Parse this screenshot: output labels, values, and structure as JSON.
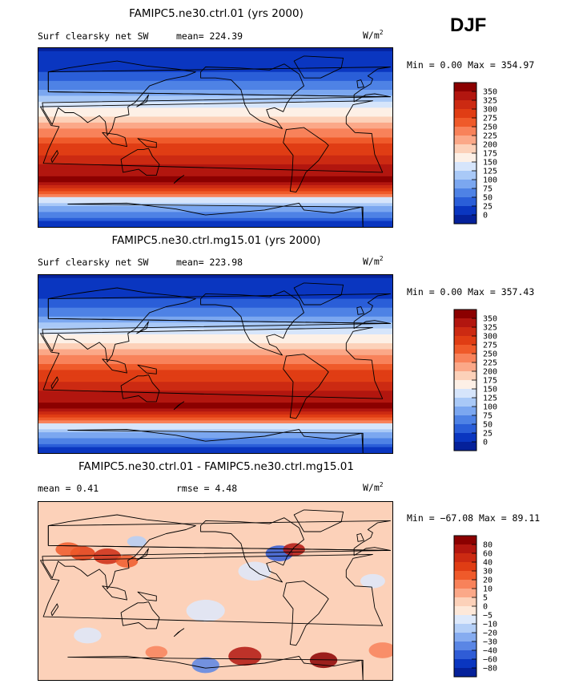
{
  "season": "DJF",
  "panels": [
    {
      "title": "FAMIPC5.ne30.ctrl.01 (yrs 2000)",
      "variable": "Surf clearsky net SW",
      "stat_text": "mean= 224.39",
      "units_base": "W/m",
      "units_exp": "2",
      "minmax": "Min =    0.00 Max = 354.97",
      "kind": "abs",
      "colorbar": {
        "labels": [
          "350",
          "325",
          "300",
          "275",
          "250",
          "225",
          "200",
          "175",
          "150",
          "125",
          "100",
          "75",
          "50",
          "25",
          "0"
        ],
        "colors": [
          "#8b0000",
          "#b2160f",
          "#cc2a12",
          "#e03d14",
          "#ef5a2a",
          "#f8825a",
          "#fba888",
          "#fcd1b9",
          "#fdf0e6",
          "#d6e5fb",
          "#a9c9f7",
          "#7ba7f0",
          "#4e82e5",
          "#2a5ed8",
          "#0a36c0",
          "#05219a"
        ]
      }
    },
    {
      "title": "FAMIPC5.ne30.ctrl.mg15.01 (yrs 2000)",
      "variable": "Surf clearsky net SW",
      "stat_text": "mean= 223.98",
      "units_base": "W/m",
      "units_exp": "2",
      "minmax": "Min =    0.00 Max = 357.43",
      "kind": "abs",
      "colorbar": {
        "labels": [
          "350",
          "325",
          "300",
          "275",
          "250",
          "225",
          "200",
          "175",
          "150",
          "125",
          "100",
          "75",
          "50",
          "25",
          "0"
        ],
        "colors": [
          "#8b0000",
          "#b2160f",
          "#cc2a12",
          "#e03d14",
          "#ef5a2a",
          "#f8825a",
          "#fba888",
          "#fcd1b9",
          "#fdf0e6",
          "#d6e5fb",
          "#a9c9f7",
          "#7ba7f0",
          "#4e82e5",
          "#2a5ed8",
          "#0a36c0",
          "#05219a"
        ]
      }
    },
    {
      "title": "FAMIPC5.ne30.ctrl.01 - FAMIPC5.ne30.ctrl.mg15.01",
      "variable": "mean =    0.41",
      "stat_text": "rmse =    4.48",
      "units_base": "W/m",
      "units_exp": "2",
      "minmax": "Min = −67.08 Max =  89.11",
      "kind": "diff",
      "colorbar": {
        "labels": [
          "80",
          "60",
          "40",
          "30",
          "20",
          "10",
          "5",
          "0",
          "−5",
          "−10",
          "−20",
          "−30",
          "−40",
          "−60",
          "−80"
        ],
        "colors": [
          "#8b0000",
          "#b2160f",
          "#cc2a12",
          "#e03d14",
          "#ef5a2a",
          "#f8825a",
          "#fba888",
          "#fcd1b9",
          "#fde8d9",
          "#dde9fb",
          "#b4cff7",
          "#86acf0",
          "#5a86e5",
          "#2f5cd6",
          "#0a36c0",
          "#05219a"
        ]
      }
    }
  ],
  "chart_data": {
    "type": "heatmap",
    "season": "DJF",
    "maps": [
      {
        "title": "FAMIPC5.ne30.ctrl.01 (yrs 2000)",
        "variable": "Surf clearsky net SW",
        "units": "W/m2",
        "mean": 224.39,
        "min": 0.0,
        "max": 354.97,
        "levels": [
          0,
          25,
          50,
          75,
          100,
          125,
          150,
          175,
          200,
          225,
          250,
          275,
          300,
          325,
          350
        ]
      },
      {
        "title": "FAMIPC5.ne30.ctrl.mg15.01 (yrs 2000)",
        "variable": "Surf clearsky net SW",
        "units": "W/m2",
        "mean": 223.98,
        "min": 0.0,
        "max": 357.43,
        "levels": [
          0,
          25,
          50,
          75,
          100,
          125,
          150,
          175,
          200,
          225,
          250,
          275,
          300,
          325,
          350
        ]
      },
      {
        "title": "FAMIPC5.ne30.ctrl.01 - FAMIPC5.ne30.ctrl.mg15.01",
        "units": "W/m2",
        "mean": 0.41,
        "rmse": 4.48,
        "min": -67.08,
        "max": 89.11,
        "levels": [
          -80,
          -60,
          -40,
          -30,
          -20,
          -10,
          -5,
          0,
          5,
          10,
          20,
          30,
          40,
          60,
          80
        ]
      }
    ]
  }
}
